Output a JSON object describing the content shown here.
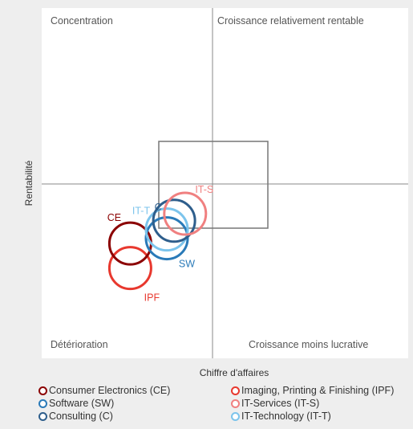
{
  "chart_data": {
    "type": "scatter",
    "xlabel": "Chiffre  d'affaires",
    "ylabel": "Rentabilité",
    "quadrants": {
      "top_left": "Concentration",
      "top_right": "Croissance relativement  rentable",
      "bottom_left": "Détérioration",
      "bottom_right": "Croissance moins lucrative"
    },
    "series": [
      {
        "name": "Consumer Electronics (CE)",
        "short": "CE",
        "color": "#8b0000",
        "x": -0.45,
        "y": -0.34
      },
      {
        "name": "Imaging, Printing & Finishing (IPF)",
        "short": "IPF",
        "color": "#e8382e",
        "x": -0.45,
        "y": -0.48
      },
      {
        "name": "Software (SW)",
        "short": "SW",
        "color": "#2a7ab8",
        "x": -0.25,
        "y": -0.31
      },
      {
        "name": "IT-Services (IT-S)",
        "short": "IT-S",
        "color": "#f08080",
        "x": -0.15,
        "y": -0.17
      },
      {
        "name": "Consulting (C)",
        "short": "C",
        "color": "#2e5e8c",
        "x": -0.21,
        "y": -0.21
      },
      {
        "name": "IT-Technology (IT-T)",
        "short": "IT-T",
        "color": "#7cc4ec",
        "x": -0.25,
        "y": -0.26
      }
    ],
    "legend_order": [
      0,
      1,
      2,
      3,
      4,
      5
    ],
    "legend_position": "bottom",
    "grid": false
  }
}
